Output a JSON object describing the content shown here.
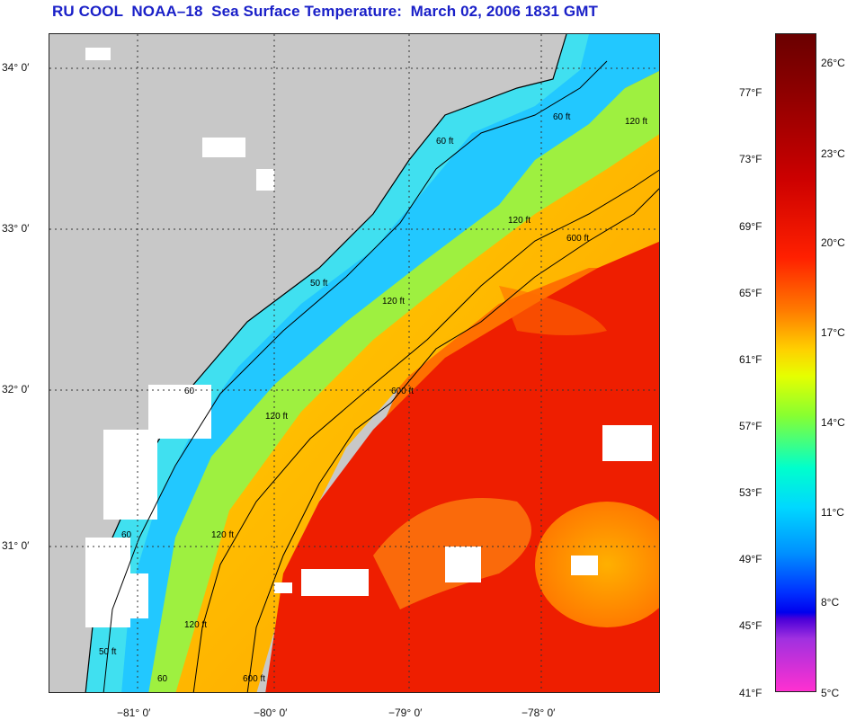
{
  "title": "RU COOL  NOAA–18  Sea Surface Temperature:  March 02, 2006 1831 GMT",
  "latitude_labels": [
    "34° 0′",
    "33° 0′",
    "32° 0′",
    "31° 0′"
  ],
  "longitude_labels": [
    "−81° 0′",
    "−80° 0′",
    "−79° 0′",
    "−78° 0′"
  ],
  "contour_labels": [
    "60 ft",
    "120 ft",
    "600 ft",
    "120 ft",
    "50 ft",
    "120 ft",
    "600 ft",
    "60",
    "120 ft",
    "120 ft",
    "60",
    "120 ft",
    "50 ft",
    "600 ft",
    "60 ft",
    "60"
  ],
  "colorbar": {
    "fahrenheit": [
      "77°F",
      "73°F",
      "69°F",
      "65°F",
      "61°F",
      "57°F",
      "53°F",
      "49°F",
      "45°F",
      "41°F"
    ],
    "celsius": [
      "26°C",
      "23°C",
      "20°C",
      "17°C",
      "14°C",
      "11°C",
      "8°C",
      "5°C"
    ]
  },
  "colors": {
    "land": "#c8c8c8",
    "title": "#1a20c8",
    "coastal_cold": "#22c8ff",
    "gulf_stream": "#ee1e00",
    "cloud": "#ffffff"
  }
}
